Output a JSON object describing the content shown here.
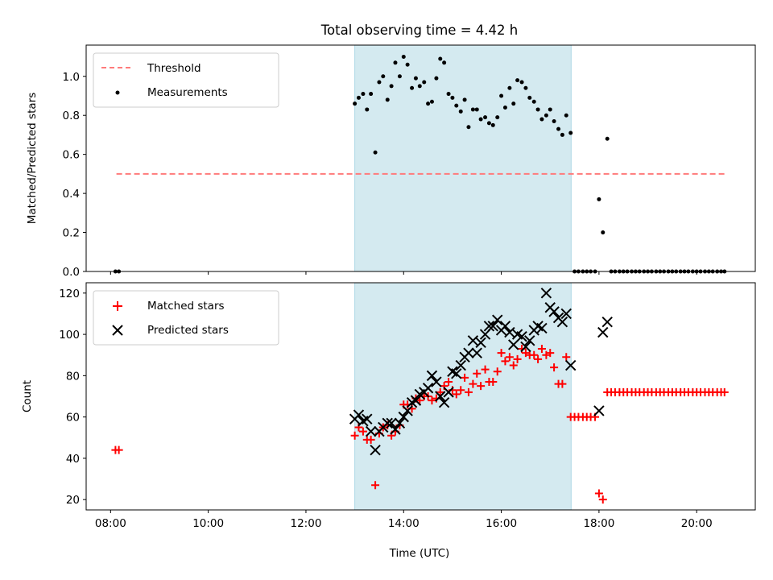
{
  "title": "Total observing time = 4.42 h",
  "colors": {
    "observing_window": "#d4eaf0",
    "threshold": "#ff7b7b",
    "matched": "#ff0000",
    "predicted": "#000000"
  },
  "chart_data": [
    {
      "type": "scatter",
      "ylabel": "Matched/Predicted stars",
      "xlim": [
        7.5,
        21.2
      ],
      "ylim": [
        0,
        1.16
      ],
      "y_ticks": [
        0.0,
        0.2,
        0.4,
        0.6,
        0.8,
        1.0
      ],
      "y_tick_labels": [
        "0.0",
        "0.2",
        "0.4",
        "0.6",
        "0.8",
        "1.0"
      ],
      "grid": false,
      "legend": "upper-left",
      "shaded_region": {
        "x": [
          13.0,
          17.43
        ]
      },
      "threshold": {
        "name": "Threshold",
        "y": 0.5,
        "x": [
          8.12,
          20.57
        ]
      },
      "series": [
        {
          "name": "Measurements",
          "points": [
            [
              8.1,
              0.0
            ],
            [
              8.17,
              0.0
            ],
            [
              13.0,
              0.86
            ],
            [
              13.08,
              0.89
            ],
            [
              13.17,
              0.91
            ],
            [
              13.25,
              0.83
            ],
            [
              13.33,
              0.91
            ],
            [
              13.42,
              0.61
            ],
            [
              13.5,
              0.97
            ],
            [
              13.58,
              1.0
            ],
            [
              13.67,
              0.88
            ],
            [
              13.75,
              0.95
            ],
            [
              13.83,
              1.07
            ],
            [
              13.92,
              1.0
            ],
            [
              14.0,
              1.1
            ],
            [
              14.08,
              1.06
            ],
            [
              14.17,
              0.94
            ],
            [
              14.25,
              0.99
            ],
            [
              14.33,
              0.95
            ],
            [
              14.42,
              0.97
            ],
            [
              14.5,
              0.86
            ],
            [
              14.58,
              0.87
            ],
            [
              14.67,
              0.99
            ],
            [
              14.75,
              1.09
            ],
            [
              14.83,
              1.07
            ],
            [
              14.92,
              0.91
            ],
            [
              15.0,
              0.89
            ],
            [
              15.08,
              0.85
            ],
            [
              15.17,
              0.82
            ],
            [
              15.25,
              0.88
            ],
            [
              15.33,
              0.74
            ],
            [
              15.42,
              0.83
            ],
            [
              15.5,
              0.83
            ],
            [
              15.58,
              0.78
            ],
            [
              15.67,
              0.79
            ],
            [
              15.75,
              0.76
            ],
            [
              15.83,
              0.75
            ],
            [
              15.92,
              0.79
            ],
            [
              16.0,
              0.9
            ],
            [
              16.08,
              0.84
            ],
            [
              16.17,
              0.94
            ],
            [
              16.25,
              0.86
            ],
            [
              16.33,
              0.98
            ],
            [
              16.42,
              0.97
            ],
            [
              16.5,
              0.94
            ],
            [
              16.58,
              0.89
            ],
            [
              16.67,
              0.87
            ],
            [
              16.75,
              0.83
            ],
            [
              16.83,
              0.78
            ],
            [
              16.92,
              0.8
            ],
            [
              17.0,
              0.83
            ],
            [
              17.08,
              0.77
            ],
            [
              17.17,
              0.73
            ],
            [
              17.25,
              0.7
            ],
            [
              17.33,
              0.8
            ],
            [
              17.42,
              0.71
            ],
            [
              17.5,
              0.0
            ],
            [
              17.58,
              0.0
            ],
            [
              17.67,
              0.0
            ],
            [
              17.75,
              0.0
            ],
            [
              17.83,
              0.0
            ],
            [
              17.92,
              0.0
            ],
            [
              18.0,
              0.37
            ],
            [
              18.08,
              0.2
            ],
            [
              18.17,
              0.68
            ],
            [
              18.25,
              0.0
            ],
            [
              18.33,
              0.0
            ],
            [
              18.42,
              0.0
            ],
            [
              18.5,
              0.0
            ],
            [
              18.58,
              0.0
            ],
            [
              18.67,
              0.0
            ],
            [
              18.75,
              0.0
            ],
            [
              18.83,
              0.0
            ],
            [
              18.92,
              0.0
            ],
            [
              19.0,
              0.0
            ],
            [
              19.08,
              0.0
            ],
            [
              19.17,
              0.0
            ],
            [
              19.25,
              0.0
            ],
            [
              19.33,
              0.0
            ],
            [
              19.42,
              0.0
            ],
            [
              19.5,
              0.0
            ],
            [
              19.58,
              0.0
            ],
            [
              19.67,
              0.0
            ],
            [
              19.75,
              0.0
            ],
            [
              19.83,
              0.0
            ],
            [
              19.92,
              0.0
            ],
            [
              20.0,
              0.0
            ],
            [
              20.08,
              0.0
            ],
            [
              20.17,
              0.0
            ],
            [
              20.25,
              0.0
            ],
            [
              20.33,
              0.0
            ],
            [
              20.42,
              0.0
            ],
            [
              20.5,
              0.0
            ],
            [
              20.57,
              0.0
            ]
          ]
        }
      ]
    },
    {
      "type": "scatter",
      "ylabel": "Count",
      "xlabel": "Time (UTC)",
      "xlim": [
        7.5,
        21.2
      ],
      "ylim": [
        15,
        125
      ],
      "x_ticks": [
        8,
        10,
        12,
        14,
        16,
        18,
        20
      ],
      "x_tick_labels": [
        "08:00",
        "10:00",
        "12:00",
        "14:00",
        "16:00",
        "18:00",
        "20:00"
      ],
      "y_ticks": [
        20,
        40,
        60,
        80,
        100,
        120
      ],
      "y_tick_labels": [
        "20",
        "40",
        "60",
        "80",
        "100",
        "120"
      ],
      "grid": false,
      "legend": "upper-left",
      "shaded_region": {
        "x": [
          13.0,
          17.43
        ]
      },
      "series": [
        {
          "name": "Matched stars",
          "marker": "plus",
          "points": [
            [
              8.1,
              44
            ],
            [
              8.17,
              44
            ],
            [
              13.0,
              51
            ],
            [
              13.08,
              55
            ],
            [
              13.17,
              53
            ],
            [
              13.25,
              49
            ],
            [
              13.33,
              49
            ],
            [
              13.42,
              27
            ],
            [
              13.5,
              52
            ],
            [
              13.58,
              55
            ],
            [
              13.67,
              56
            ],
            [
              13.75,
              51
            ],
            [
              13.83,
              53
            ],
            [
              13.92,
              56
            ],
            [
              14.0,
              66
            ],
            [
              14.08,
              66
            ],
            [
              14.17,
              64
            ],
            [
              14.25,
              69
            ],
            [
              14.33,
              68
            ],
            [
              14.42,
              70
            ],
            [
              14.5,
              70
            ],
            [
              14.58,
              68
            ],
            [
              14.67,
              69
            ],
            [
              14.75,
              72
            ],
            [
              14.83,
              75
            ],
            [
              14.92,
              77
            ],
            [
              15.0,
              73
            ],
            [
              15.08,
              71
            ],
            [
              15.17,
              73
            ],
            [
              15.25,
              79
            ],
            [
              15.33,
              72
            ],
            [
              15.42,
              76
            ],
            [
              15.5,
              81
            ],
            [
              15.58,
              75
            ],
            [
              15.67,
              83
            ],
            [
              15.75,
              77
            ],
            [
              15.83,
              77
            ],
            [
              15.92,
              82
            ],
            [
              16.0,
              91
            ],
            [
              16.08,
              87
            ],
            [
              16.17,
              89
            ],
            [
              16.25,
              85
            ],
            [
              16.33,
              88
            ],
            [
              16.42,
              93
            ],
            [
              16.5,
              91
            ],
            [
              16.58,
              90
            ],
            [
              16.67,
              90
            ],
            [
              16.75,
              88
            ],
            [
              16.83,
              93
            ],
            [
              16.92,
              90
            ],
            [
              17.0,
              91
            ],
            [
              17.08,
              84
            ],
            [
              17.17,
              76
            ],
            [
              17.25,
              76
            ],
            [
              17.33,
              89
            ],
            [
              17.42,
              60
            ],
            [
              17.5,
              60
            ],
            [
              17.58,
              60
            ],
            [
              17.67,
              60
            ],
            [
              17.75,
              60
            ],
            [
              17.83,
              60
            ],
            [
              17.92,
              60
            ],
            [
              18.0,
              23
            ],
            [
              18.08,
              20
            ],
            [
              18.17,
              72
            ],
            [
              18.25,
              72
            ],
            [
              18.33,
              72
            ],
            [
              18.42,
              72
            ],
            [
              18.5,
              72
            ],
            [
              18.58,
              72
            ],
            [
              18.67,
              72
            ],
            [
              18.75,
              72
            ],
            [
              18.83,
              72
            ],
            [
              18.92,
              72
            ],
            [
              19.0,
              72
            ],
            [
              19.08,
              72
            ],
            [
              19.17,
              72
            ],
            [
              19.25,
              72
            ],
            [
              19.33,
              72
            ],
            [
              19.42,
              72
            ],
            [
              19.5,
              72
            ],
            [
              19.58,
              72
            ],
            [
              19.67,
              72
            ],
            [
              19.75,
              72
            ],
            [
              19.83,
              72
            ],
            [
              19.92,
              72
            ],
            [
              20.0,
              72
            ],
            [
              20.08,
              72
            ],
            [
              20.17,
              72
            ],
            [
              20.25,
              72
            ],
            [
              20.33,
              72
            ],
            [
              20.42,
              72
            ],
            [
              20.5,
              72
            ],
            [
              20.57,
              72
            ]
          ]
        },
        {
          "name": "Predicted stars",
          "marker": "x",
          "points": [
            [
              13.0,
              59
            ],
            [
              13.08,
              61
            ],
            [
              13.17,
              58
            ],
            [
              13.25,
              59
            ],
            [
              13.33,
              53
            ],
            [
              13.42,
              44
            ],
            [
              13.5,
              53
            ],
            [
              13.58,
              55
            ],
            [
              13.67,
              57
            ],
            [
              13.75,
              57
            ],
            [
              13.83,
              54
            ],
            [
              13.92,
              57
            ],
            [
              14.0,
              60
            ],
            [
              14.08,
              63
            ],
            [
              14.17,
              67
            ],
            [
              14.25,
              68
            ],
            [
              14.33,
              71
            ],
            [
              14.42,
              72
            ],
            [
              14.5,
              74
            ],
            [
              14.58,
              80
            ],
            [
              14.67,
              77
            ],
            [
              14.75,
              70
            ],
            [
              14.83,
              67
            ],
            [
              14.92,
              72
            ],
            [
              15.0,
              82
            ],
            [
              15.08,
              81
            ],
            [
              15.17,
              85
            ],
            [
              15.25,
              89
            ],
            [
              15.33,
              91
            ],
            [
              15.42,
              97
            ],
            [
              15.5,
              91
            ],
            [
              15.58,
              96
            ],
            [
              15.67,
              100
            ],
            [
              15.75,
              104
            ],
            [
              15.83,
              104
            ],
            [
              15.92,
              107
            ],
            [
              16.0,
              102
            ],
            [
              16.08,
              104
            ],
            [
              16.17,
              101
            ],
            [
              16.25,
              95
            ],
            [
              16.33,
              100
            ],
            [
              16.42,
              99
            ],
            [
              16.5,
              94
            ],
            [
              16.58,
              97
            ],
            [
              16.67,
              102
            ],
            [
              16.75,
              104
            ],
            [
              16.83,
              103
            ],
            [
              16.92,
              120
            ],
            [
              17.0,
              113
            ],
            [
              17.08,
              111
            ],
            [
              17.17,
              108
            ],
            [
              17.25,
              106
            ],
            [
              17.33,
              110
            ],
            [
              17.42,
              85
            ],
            [
              17.5,
              null
            ],
            [
              18.0,
              63
            ],
            [
              18.08,
              101
            ],
            [
              18.17,
              106
            ]
          ]
        }
      ]
    }
  ]
}
